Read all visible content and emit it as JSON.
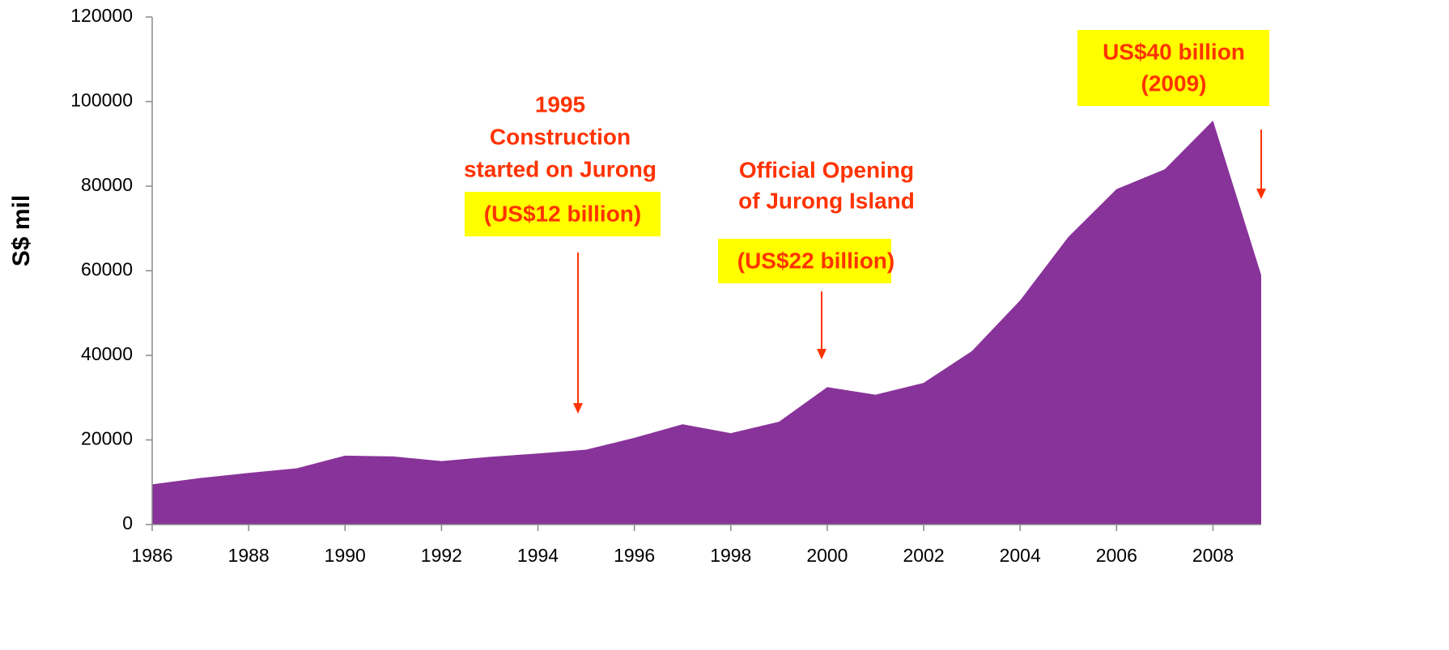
{
  "chart_data": {
    "type": "area",
    "y_label": "S$ mil",
    "x": [
      1986,
      1987,
      1988,
      1989,
      1990,
      1991,
      1992,
      1993,
      1994,
      1995,
      1996,
      1997,
      1998,
      1999,
      2000,
      2001,
      2002,
      2003,
      2004,
      2005,
      2006,
      2007,
      2008,
      2009
    ],
    "series": [
      {
        "color": "#883399",
        "values": [
          9500,
          11000,
          12200,
          13300,
          16300,
          16100,
          15000,
          16000,
          16800,
          17700,
          20500,
          23700,
          21600,
          24300,
          32500,
          30700,
          33500,
          41000,
          53000,
          68000,
          79300,
          84000,
          95500,
          59000
        ]
      }
    ],
    "xlim": [
      1986,
      2009
    ],
    "xticks": [
      1986,
      1988,
      1990,
      1992,
      1994,
      1996,
      1998,
      2000,
      2002,
      2004,
      2006,
      2008
    ],
    "ylim": [
      0,
      120000
    ],
    "yticks": [
      0,
      20000,
      40000,
      60000,
      80000,
      100000,
      120000
    ],
    "grid": false,
    "annotations": [
      "1995",
      "Construction",
      "started on Jurong",
      "(US$12 billion)",
      "Official Opening",
      "of Jurong Island",
      "(US$22 billion)",
      "US$40 billion",
      "(2009)"
    ]
  }
}
